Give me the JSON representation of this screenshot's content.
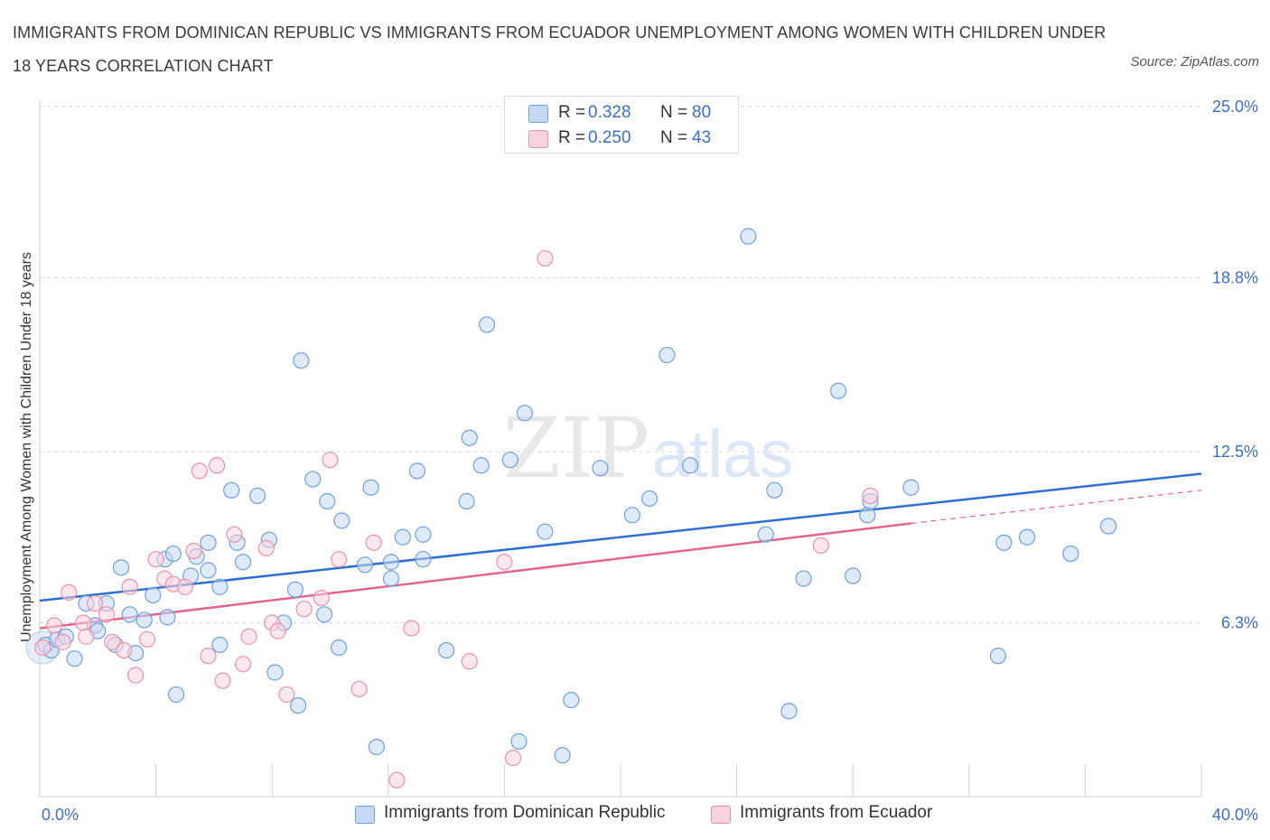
{
  "title": "IMMIGRANTS FROM DOMINICAN REPUBLIC VS IMMIGRANTS FROM ECUADOR UNEMPLOYMENT AMONG WOMEN WITH CHILDREN UNDER 18 YEARS CORRELATION CHART",
  "source": "Source: ZipAtlas.com",
  "watermark": {
    "zip": "ZIP",
    "atlas": "atlas"
  },
  "colors": {
    "blue": "#6f9fe0",
    "blue_fill": "#c5d9f4",
    "blue_line": "#2f6fcf",
    "pink": "#e892ac",
    "pink_fill": "#f7d3de",
    "pink_line": "#e06590",
    "grid": "#d9d9d9",
    "axis_text": "#3b6fc4"
  },
  "legend": {
    "rows": [
      {
        "r_label": "R =",
        "r_value": "0.328",
        "n_label": "N =",
        "n_value": "80"
      },
      {
        "r_label": "R =",
        "r_value": "0.250",
        "n_label": "N =",
        "n_value": "43"
      }
    ]
  },
  "chart_data": {
    "type": "scatter",
    "xlabel": "",
    "ylabel": "Unemployment Among Women with Children Under 18 years",
    "xlim": [
      0,
      40
    ],
    "ylim": [
      0,
      25
    ],
    "x_tick_labels": [
      "0.0%",
      "40.0%"
    ],
    "y_tick_labels": [
      "6.3%",
      "12.5%",
      "18.8%",
      "25.0%"
    ],
    "y_ticks": [
      6.3,
      12.5,
      18.8,
      25.0
    ],
    "grid": true,
    "legend_position": "top-center",
    "series": [
      {
        "name": "Immigrants from Dominican Republic",
        "color": "blue",
        "trend": {
          "x": [
            0,
            40
          ],
          "y": [
            7.1,
            11.7
          ]
        },
        "points": [
          [
            0.2,
            5.5
          ],
          [
            0.4,
            5.3
          ],
          [
            0.6,
            5.7
          ],
          [
            0.9,
            5.8
          ],
          [
            1.2,
            5.0
          ],
          [
            1.6,
            7.0
          ],
          [
            1.9,
            6.2
          ],
          [
            2.0,
            6.0
          ],
          [
            2.3,
            7.0
          ],
          [
            2.6,
            5.5
          ],
          [
            2.8,
            8.3
          ],
          [
            3.1,
            6.6
          ],
          [
            3.3,
            5.2
          ],
          [
            3.6,
            6.4
          ],
          [
            3.9,
            7.3
          ],
          [
            4.3,
            8.6
          ],
          [
            4.4,
            6.5
          ],
          [
            4.6,
            8.8
          ],
          [
            4.7,
            3.7
          ],
          [
            5.2,
            8.0
          ],
          [
            5.4,
            8.7
          ],
          [
            5.8,
            9.2
          ],
          [
            5.8,
            8.2
          ],
          [
            6.2,
            7.6
          ],
          [
            6.2,
            5.5
          ],
          [
            6.6,
            11.1
          ],
          [
            6.8,
            9.2
          ],
          [
            7.0,
            8.5
          ],
          [
            7.5,
            10.9
          ],
          [
            7.9,
            9.3
          ],
          [
            8.1,
            4.5
          ],
          [
            8.4,
            6.3
          ],
          [
            8.8,
            7.5
          ],
          [
            8.9,
            3.3
          ],
          [
            9.0,
            15.8
          ],
          [
            9.4,
            11.5
          ],
          [
            9.8,
            6.6
          ],
          [
            9.9,
            10.7
          ],
          [
            10.3,
            5.4
          ],
          [
            10.4,
            10.0
          ],
          [
            11.2,
            8.4
          ],
          [
            11.4,
            11.2
          ],
          [
            11.6,
            1.8
          ],
          [
            12.1,
            7.9
          ],
          [
            12.1,
            8.5
          ],
          [
            12.5,
            9.4
          ],
          [
            13.0,
            11.8
          ],
          [
            13.2,
            9.5
          ],
          [
            13.2,
            8.6
          ],
          [
            14.0,
            5.3
          ],
          [
            14.7,
            10.7
          ],
          [
            14.8,
            13.0
          ],
          [
            15.2,
            12.0
          ],
          [
            15.4,
            17.1
          ],
          [
            16.2,
            12.2
          ],
          [
            16.5,
            2.0
          ],
          [
            16.7,
            13.9
          ],
          [
            17.4,
            9.6
          ],
          [
            18.0,
            1.5
          ],
          [
            18.3,
            3.5
          ],
          [
            19.3,
            11.9
          ],
          [
            20.4,
            10.2
          ],
          [
            21.0,
            10.8
          ],
          [
            21.6,
            16.0
          ],
          [
            22.4,
            12.0
          ],
          [
            24.4,
            20.3
          ],
          [
            25.0,
            9.5
          ],
          [
            25.3,
            11.1
          ],
          [
            25.8,
            3.1
          ],
          [
            26.3,
            7.9
          ],
          [
            27.5,
            14.7
          ],
          [
            28.0,
            8.0
          ],
          [
            28.5,
            10.2
          ],
          [
            28.6,
            10.7
          ],
          [
            30.0,
            11.2
          ],
          [
            33.0,
            5.1
          ],
          [
            33.2,
            9.2
          ],
          [
            34.0,
            9.4
          ],
          [
            35.5,
            8.8
          ],
          [
            36.8,
            9.8
          ]
        ]
      },
      {
        "name": "Immigrants from Ecuador",
        "color": "pink",
        "trend": {
          "x": [
            0,
            30
          ],
          "y": [
            6.1,
            9.9
          ]
        },
        "trend_dashed": {
          "x": [
            30,
            40
          ],
          "y": [
            9.9,
            11.1
          ]
        },
        "points": [
          [
            0.1,
            5.4
          ],
          [
            0.5,
            6.2
          ],
          [
            0.8,
            5.6
          ],
          [
            1.0,
            7.4
          ],
          [
            1.5,
            6.3
          ],
          [
            1.6,
            5.8
          ],
          [
            1.9,
            7.0
          ],
          [
            2.3,
            6.6
          ],
          [
            2.5,
            5.6
          ],
          [
            2.9,
            5.3
          ],
          [
            3.1,
            7.6
          ],
          [
            3.3,
            4.4
          ],
          [
            3.7,
            5.7
          ],
          [
            4.0,
            8.6
          ],
          [
            4.3,
            7.9
          ],
          [
            4.6,
            7.7
          ],
          [
            5.0,
            7.6
          ],
          [
            5.3,
            8.9
          ],
          [
            5.5,
            11.8
          ],
          [
            5.8,
            5.1
          ],
          [
            6.1,
            12.0
          ],
          [
            6.3,
            4.2
          ],
          [
            6.7,
            9.5
          ],
          [
            7.0,
            4.8
          ],
          [
            7.2,
            5.8
          ],
          [
            7.8,
            9.0
          ],
          [
            8.0,
            6.3
          ],
          [
            8.2,
            6.0
          ],
          [
            8.5,
            3.7
          ],
          [
            9.1,
            6.8
          ],
          [
            9.7,
            7.2
          ],
          [
            10.0,
            12.2
          ],
          [
            10.3,
            8.6
          ],
          [
            11.0,
            3.9
          ],
          [
            11.5,
            9.2
          ],
          [
            12.3,
            0.6
          ],
          [
            12.8,
            6.1
          ],
          [
            14.8,
            4.9
          ],
          [
            16.0,
            8.5
          ],
          [
            16.3,
            1.4
          ],
          [
            17.4,
            19.5
          ],
          [
            26.9,
            9.1
          ],
          [
            28.6,
            10.9
          ]
        ]
      }
    ]
  }
}
